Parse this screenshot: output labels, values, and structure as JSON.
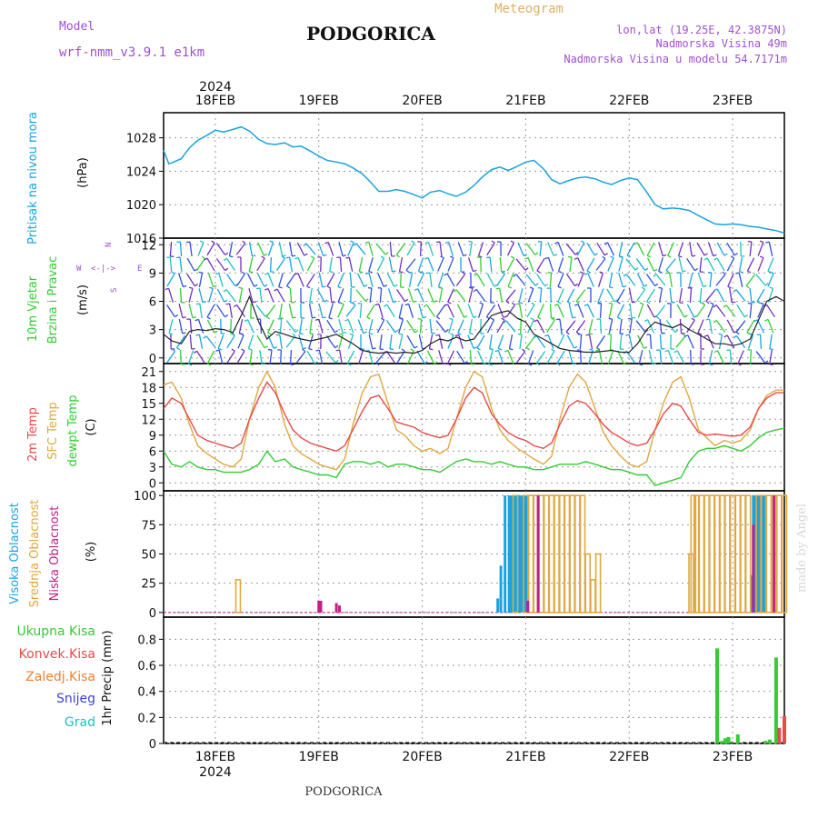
{
  "header": {
    "model_label": "Model",
    "model_value": "wrf-nmm_v3.9.1 e1km",
    "title": "PODGORICA",
    "meteogram_label": "Meteogram",
    "lonlat": "lon,lat (19.25E, 42.3875N)",
    "elevation": "Nadmorska Visina 49m",
    "model_elevation": "Nadmorska Visina u modelu 54.7171m",
    "footer_name": "PODGORICA",
    "credit": "made by Angel",
    "year_top": "2024",
    "year_bottom": "2024"
  },
  "colors": {
    "pressure": "#1aa3e0",
    "temp2m": "#e84a4a",
    "sfc": "#e0a840",
    "dewpt": "#33cc33",
    "high_cloud": "#1aa3e0",
    "mid_cloud": "#e0a840",
    "low_cloud": "#c0208a",
    "total_precip": "#33cc33",
    "conv_precip": "#e84a4a",
    "frozen_precip": "#f08030",
    "snow": "#4040e0",
    "hail": "#20c0c0",
    "wind_label": "#33cc33",
    "violet": "#a050d0"
  },
  "chart_data": [
    {
      "type": "line",
      "title": "Pritisak na nivou mora",
      "ylabel": "(hPa)",
      "ylim": [
        1016,
        1031
      ],
      "yticks": [
        "1016",
        "1020",
        "1024",
        "1028"
      ],
      "xticks": [
        "18FEB",
        "19FEB",
        "20FEB",
        "21FEB",
        "22FEB",
        "23FEB"
      ],
      "grid": true,
      "x_start_day": "17FEB",
      "series": [
        {
          "x": [
            0.5,
            0.55,
            0.58,
            0.67,
            0.75,
            0.83,
            0.92,
            1.0,
            1.08,
            1.17,
            1.25,
            1.33,
            1.42,
            1.5,
            1.58,
            1.67,
            1.75,
            1.83,
            1.92,
            2.0,
            2.08,
            2.17,
            2.25,
            2.33,
            2.42,
            2.5,
            2.58,
            2.67,
            2.75,
            2.83,
            2.92,
            3.0,
            3.08,
            3.17,
            3.25,
            3.33,
            3.42,
            3.5,
            3.58,
            3.67,
            3.75,
            3.83,
            3.92,
            4.0,
            4.08,
            4.17,
            4.25,
            4.33,
            4.42,
            4.5,
            4.58,
            4.67,
            4.75,
            4.83,
            4.92,
            5.0,
            5.08,
            5.17,
            5.25,
            5.33,
            5.42,
            5.5,
            5.58,
            5.67,
            5.75,
            5.83,
            5.92,
            6.0,
            6.08,
            6.17,
            6.25,
            6.33,
            6.42,
            6.5
          ],
          "values": [
            1026.5,
            1024.9,
            1025.0,
            1025.5,
            1026.8,
            1027.7,
            1028.3,
            1028.9,
            1028.7,
            1029.0,
            1029.3,
            1028.8,
            1027.8,
            1027.3,
            1027.2,
            1027.4,
            1026.9,
            1027.0,
            1026.4,
            1025.8,
            1025.3,
            1025.1,
            1024.9,
            1024.4,
            1023.7,
            1022.7,
            1021.6,
            1021.6,
            1021.8,
            1021.6,
            1021.2,
            1020.8,
            1021.5,
            1021.7,
            1021.3,
            1021.0,
            1021.5,
            1022.3,
            1023.3,
            1024.2,
            1024.5,
            1024.1,
            1024.6,
            1025.1,
            1025.3,
            1024.3,
            1023.0,
            1022.5,
            1022.9,
            1023.2,
            1023.3,
            1023.1,
            1022.7,
            1022.4,
            1022.9,
            1023.2,
            1023.0,
            1021.5,
            1020.0,
            1019.5,
            1019.6,
            1019.5,
            1019.3,
            1018.7,
            1018.2,
            1017.7,
            1017.6,
            1017.7,
            1017.6,
            1017.4,
            1017.3,
            1017.1,
            1016.9,
            1016.6
          ]
        }
      ]
    },
    {
      "type": "line",
      "title": "10m Vjetar Brzina i Pravac",
      "ylabel": "(m/s)",
      "ylim": [
        -0.6,
        12.7
      ],
      "yticks": [
        "0",
        "3",
        "6",
        "9",
        "12"
      ],
      "legend_compass": [
        "N",
        "E",
        "S",
        "W"
      ],
      "grid": true,
      "series": [
        {
          "name": "speed",
          "x": [
            0.5,
            0.58,
            0.67,
            0.75,
            0.83,
            0.92,
            1.0,
            1.08,
            1.17,
            1.25,
            1.33,
            1.42,
            1.5,
            1.58,
            1.67,
            1.75,
            1.83,
            1.92,
            2.0,
            2.08,
            2.17,
            2.25,
            2.33,
            2.42,
            2.5,
            2.58,
            2.67,
            2.75,
            2.83,
            2.92,
            3.0,
            3.08,
            3.17,
            3.25,
            3.33,
            3.42,
            3.5,
            3.58,
            3.67,
            3.75,
            3.83,
            3.92,
            4.0,
            4.08,
            4.17,
            4.25,
            4.33,
            4.42,
            4.5,
            4.58,
            4.67,
            4.75,
            4.83,
            4.92,
            5.0,
            5.08,
            5.17,
            5.25,
            5.33,
            5.42,
            5.5,
            5.58,
            5.67,
            5.75,
            5.83,
            5.92,
            6.0,
            6.08,
            6.17,
            6.25,
            6.33,
            6.42,
            6.5
          ],
          "values": [
            2.5,
            1.8,
            1.5,
            2.8,
            3.0,
            2.9,
            3.1,
            3.0,
            2.7,
            4.5,
            6.5,
            3.8,
            2.0,
            2.8,
            2.5,
            2.2,
            2.0,
            1.8,
            2.0,
            2.2,
            2.5,
            2.0,
            1.5,
            0.8,
            0.6,
            0.5,
            0.6,
            0.5,
            0.6,
            0.5,
            0.8,
            1.5,
            2.0,
            1.8,
            2.2,
            1.8,
            2.0,
            3.2,
            4.5,
            4.8,
            5.0,
            4.2,
            3.8,
            2.5,
            2.0,
            1.5,
            1.0,
            0.8,
            0.7,
            0.6,
            0.6,
            0.7,
            0.8,
            0.6,
            0.6,
            1.5,
            3.0,
            3.8,
            3.5,
            3.2,
            3.6,
            3.0,
            2.5,
            2.0,
            1.5,
            1.5,
            1.3,
            1.5,
            2.0,
            4.0,
            6.0,
            6.5,
            6.0
          ]
        }
      ]
    },
    {
      "type": "line",
      "title": "2m Temp",
      "ylabel": "(C)",
      "ylim": [
        -1.5,
        22.5
      ],
      "yticks": [
        "0",
        "3",
        "6",
        "9",
        "12",
        "15",
        "18",
        "21"
      ],
      "grid": true,
      "series": [
        {
          "name": "2m Temp",
          "x": [
            0.5,
            0.58,
            0.67,
            0.75,
            0.83,
            0.92,
            1.0,
            1.08,
            1.17,
            1.25,
            1.33,
            1.42,
            1.5,
            1.58,
            1.67,
            1.75,
            1.83,
            1.92,
            2.0,
            2.08,
            2.17,
            2.25,
            2.33,
            2.42,
            2.5,
            2.58,
            2.67,
            2.75,
            2.83,
            2.92,
            3.0,
            3.08,
            3.17,
            3.25,
            3.33,
            3.42,
            3.5,
            3.58,
            3.67,
            3.75,
            3.83,
            3.92,
            4.0,
            4.08,
            4.17,
            4.25,
            4.33,
            4.42,
            4.5,
            4.58,
            4.67,
            4.75,
            4.83,
            4.92,
            5.0,
            5.08,
            5.17,
            5.25,
            5.33,
            5.42,
            5.5,
            5.58,
            5.67,
            5.75,
            5.83,
            5.92,
            6.0,
            6.08,
            6.17,
            6.25,
            6.33,
            6.42,
            6.5
          ],
          "values": [
            14.0,
            16.0,
            15.0,
            12.0,
            9.0,
            8.0,
            7.5,
            7.0,
            6.5,
            7.5,
            12.0,
            16.0,
            19.0,
            17.0,
            13.0,
            10.0,
            8.5,
            7.5,
            7.0,
            6.5,
            6.0,
            7.0,
            10.0,
            13.5,
            16.0,
            16.5,
            14.0,
            11.5,
            11.0,
            10.5,
            9.5,
            9.0,
            8.5,
            9.0,
            12.0,
            16.0,
            18.0,
            17.0,
            13.0,
            11.0,
            9.5,
            8.5,
            8.0,
            7.0,
            6.5,
            7.5,
            11.0,
            14.5,
            15.5,
            15.0,
            13.0,
            11.0,
            9.5,
            8.5,
            7.5,
            7.0,
            7.5,
            10.0,
            13.0,
            15.0,
            14.5,
            12.0,
            9.5,
            9.0,
            9.2,
            9.0,
            8.8,
            9.0,
            10.5,
            14.0,
            16.0,
            17.0,
            17.0
          ]
        },
        {
          "name": "SFC Temp",
          "x": [
            0.5,
            0.58,
            0.67,
            0.75,
            0.83,
            0.92,
            1.0,
            1.08,
            1.17,
            1.25,
            1.33,
            1.42,
            1.5,
            1.58,
            1.67,
            1.75,
            1.83,
            1.92,
            2.0,
            2.08,
            2.17,
            2.25,
            2.33,
            2.42,
            2.5,
            2.58,
            2.67,
            2.75,
            2.83,
            2.92,
            3.0,
            3.08,
            3.17,
            3.25,
            3.33,
            3.42,
            3.5,
            3.58,
            3.67,
            3.75,
            3.83,
            3.92,
            4.0,
            4.08,
            4.17,
            4.25,
            4.33,
            4.42,
            4.5,
            4.58,
            4.67,
            4.75,
            4.83,
            4.92,
            5.0,
            5.08,
            5.17,
            5.25,
            5.33,
            5.42,
            5.5,
            5.58,
            5.67,
            5.75,
            5.83,
            5.92,
            6.0,
            6.08,
            6.17,
            6.25,
            6.33,
            6.42,
            6.5
          ],
          "values": [
            18.5,
            19.0,
            16.0,
            11.0,
            7.0,
            5.5,
            4.5,
            3.5,
            3.0,
            4.5,
            12.0,
            18.0,
            21.0,
            18.0,
            11.0,
            7.0,
            5.5,
            4.5,
            3.5,
            3.0,
            2.5,
            4.5,
            11.0,
            17.0,
            20.0,
            20.5,
            15.0,
            10.0,
            9.0,
            7.0,
            6.0,
            6.5,
            5.5,
            6.5,
            12.0,
            18.0,
            21.0,
            20.0,
            14.0,
            10.0,
            8.0,
            6.5,
            5.5,
            4.5,
            3.5,
            5.0,
            12.0,
            18.0,
            20.5,
            19.0,
            14.0,
            9.5,
            7.0,
            5.0,
            3.5,
            3.0,
            4.0,
            10.0,
            15.0,
            19.0,
            20.0,
            16.0,
            10.0,
            8.5,
            7.0,
            8.0,
            7.5,
            8.0,
            10.0,
            14.0,
            16.5,
            17.5,
            17.5
          ]
        },
        {
          "name": "dewpt Temp",
          "x": [
            0.5,
            0.58,
            0.67,
            0.75,
            0.83,
            0.92,
            1.0,
            1.08,
            1.17,
            1.25,
            1.33,
            1.42,
            1.5,
            1.58,
            1.67,
            1.75,
            1.83,
            1.92,
            2.0,
            2.08,
            2.17,
            2.25,
            2.33,
            2.42,
            2.5,
            2.58,
            2.67,
            2.75,
            2.83,
            2.92,
            3.0,
            3.08,
            3.17,
            3.25,
            3.33,
            3.42,
            3.5,
            3.58,
            3.67,
            3.75,
            3.83,
            3.92,
            4.0,
            4.08,
            4.17,
            4.25,
            4.33,
            4.42,
            4.5,
            4.58,
            4.67,
            4.75,
            4.83,
            4.92,
            5.0,
            5.08,
            5.17,
            5.25,
            5.33,
            5.42,
            5.5,
            5.58,
            5.67,
            5.75,
            5.83,
            5.92,
            6.0,
            6.08,
            6.17,
            6.25,
            6.33,
            6.42,
            6.5
          ],
          "values": [
            6.0,
            3.5,
            3.0,
            4.0,
            3.0,
            2.5,
            2.5,
            2.0,
            2.0,
            2.0,
            2.5,
            3.5,
            6.0,
            4.0,
            4.5,
            3.0,
            2.5,
            2.0,
            1.5,
            1.5,
            1.0,
            3.5,
            4.0,
            4.0,
            3.5,
            4.0,
            3.0,
            3.5,
            3.5,
            3.0,
            2.5,
            2.5,
            2.0,
            3.0,
            4.0,
            4.5,
            4.0,
            4.0,
            3.5,
            4.0,
            3.5,
            3.0,
            3.0,
            2.5,
            2.5,
            3.0,
            3.5,
            3.5,
            3.5,
            4.0,
            3.5,
            3.0,
            2.5,
            2.5,
            2.0,
            1.5,
            1.5,
            -0.5,
            0.0,
            0.5,
            1.0,
            4.0,
            6.0,
            6.5,
            6.5,
            7.0,
            6.5,
            6.0,
            7.0,
            8.5,
            9.5,
            10.0,
            10.3
          ]
        }
      ]
    },
    {
      "type": "bar",
      "title": "Oblacnost",
      "ylabel": "(%)",
      "ylim": [
        -4,
        104
      ],
      "yticks": [
        "0",
        "25",
        "50",
        "75",
        "100"
      ],
      "grid": true,
      "series": [
        {
          "name": "Visoka Oblacnost",
          "x": [
            3.73,
            3.76,
            3.8,
            3.84,
            3.86,
            3.88,
            3.9,
            3.92,
            3.94,
            3.96,
            3.98,
            4.0,
            4.02,
            6.18,
            6.2,
            6.22,
            6.24,
            6.26,
            6.28,
            6.3,
            6.32
          ],
          "values": [
            12,
            40,
            100,
            100,
            100,
            100,
            100,
            100,
            100,
            100,
            100,
            100,
            100,
            32,
            100,
            100,
            100,
            100,
            100,
            100,
            100
          ]
        },
        {
          "name": "Srednja Oblacnost",
          "x": [
            1.22,
            3.9,
            4.0,
            4.05,
            4.1,
            4.15,
            4.2,
            4.25,
            4.3,
            4.35,
            4.4,
            4.45,
            4.5,
            4.55,
            4.6,
            4.65,
            4.7,
            5.6,
            5.62,
            5.65,
            5.7,
            5.75,
            5.8,
            5.85,
            5.9,
            5.95,
            6.0,
            6.05,
            6.1,
            6.15,
            6.25,
            6.3,
            6.35,
            6.4,
            6.45,
            6.5
          ],
          "values": [
            28,
            100,
            100,
            100,
            100,
            100,
            100,
            100,
            100,
            100,
            100,
            100,
            100,
            100,
            50,
            28,
            50,
            50,
            100,
            100,
            100,
            100,
            100,
            100,
            100,
            100,
            100,
            100,
            100,
            100,
            100,
            100,
            100,
            100,
            100,
            100
          ]
        },
        {
          "name": "Niska Oblacnost",
          "x": [
            2.0,
            2.02,
            2.17,
            2.2,
            4.02,
            4.12,
            6.2,
            6.4
          ],
          "values": [
            10,
            10,
            8,
            6,
            10,
            100,
            75,
            100
          ]
        }
      ]
    },
    {
      "type": "bar",
      "title": "1hr Precip",
      "ylabel": "1hr Precip (mm)",
      "ylim": [
        0,
        0.97
      ],
      "yticks": [
        "0",
        "0.2",
        "0.4",
        "0.6",
        "0.8"
      ],
      "legend": [
        "Ukupna Kisa",
        "Konvek.Kisa",
        "Zaledj.Kisa",
        "Snijeg",
        "Grad"
      ],
      "grid": true,
      "series": [
        {
          "name": "Ukupna Kisa",
          "x": [
            5.85,
            5.9,
            5.93,
            5.96,
            6.05,
            6.32,
            6.36,
            6.42
          ],
          "values": [
            0.73,
            0.02,
            0.04,
            0.05,
            0.07,
            0.02,
            0.03,
            0.66
          ]
        },
        {
          "name": "Konvek.Kisa",
          "x": [
            6.45,
            6.5
          ],
          "values": [
            0.12,
            0.21
          ]
        }
      ]
    }
  ]
}
